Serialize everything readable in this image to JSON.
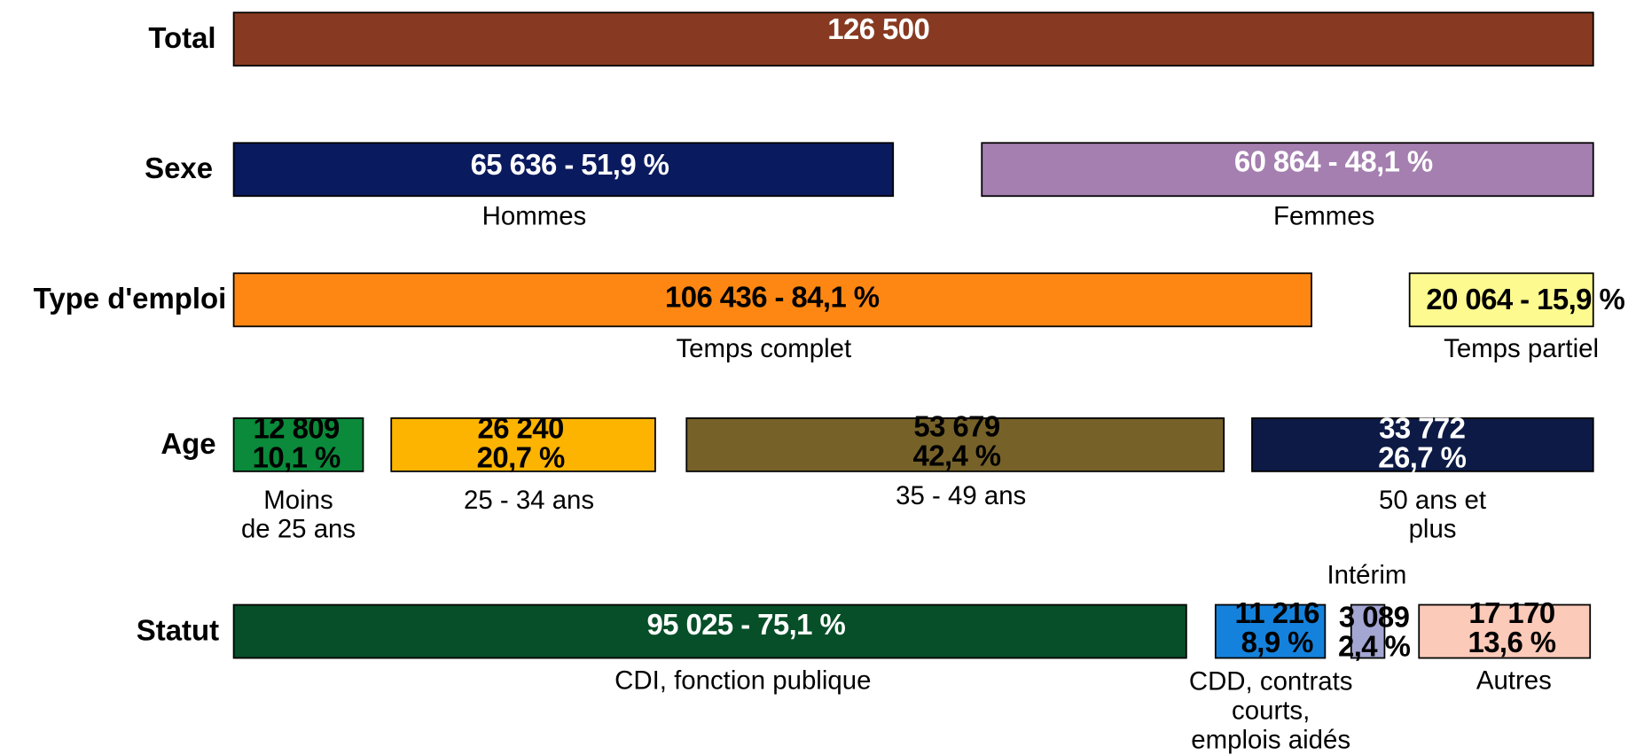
{
  "rows": [
    {
      "label": "Total",
      "segments": [
        {
          "value_lines": [
            "126 500"
          ],
          "color": "#873a21",
          "text_color": "#ffffff"
        }
      ]
    },
    {
      "label": "Sexe",
      "segments": [
        {
          "value_lines": [
            "65 636 - 51,9 %"
          ],
          "label_lines": [
            "Hommes"
          ],
          "color": "#0a1a5e",
          "text_color": "#ffffff"
        },
        {
          "value_lines": [
            "60 864 - 48,1 %"
          ],
          "label_lines": [
            "Femmes"
          ],
          "color": "#a57fb0",
          "text_color": "#ffffff"
        }
      ]
    },
    {
      "label": "Type d'emploi",
      "segments": [
        {
          "value_lines": [
            "106 436 - 84,1 %"
          ],
          "label_lines": [
            "Temps complet"
          ],
          "color": "#fd8712",
          "text_color": "#000000"
        },
        {
          "value_lines": [
            "20 064 - 15,9 %"
          ],
          "label_lines": [
            "Temps partiel"
          ],
          "color": "#fdfa8f",
          "text_color": "#000000"
        }
      ]
    },
    {
      "label": "Age",
      "segments": [
        {
          "value_lines": [
            "12 809",
            "10,1 %"
          ],
          "label_lines": [
            "Moins",
            "de 25 ans"
          ],
          "color": "#0a8a3a",
          "text_color": "#000000"
        },
        {
          "value_lines": [
            "26 240",
            "20,7 %"
          ],
          "label_lines": [
            "25 - 34 ans"
          ],
          "color": "#fdb400",
          "text_color": "#000000"
        },
        {
          "value_lines": [
            "53 679",
            "42,4 %"
          ],
          "label_lines": [
            "35 - 49 ans"
          ],
          "color": "#766229",
          "text_color": "#000000"
        },
        {
          "value_lines": [
            "33 772",
            "26,7 %"
          ],
          "label_lines": [
            "50 ans et",
            "plus"
          ],
          "color": "#0c1a45",
          "text_color": "#ffffff"
        }
      ]
    },
    {
      "label": "Statut",
      "segments": [
        {
          "value_lines": [
            "95 025 - 75,1 %"
          ],
          "label_lines": [
            "CDI, fonction publique"
          ],
          "color": "#064f28",
          "text_color": "#ffffff"
        },
        {
          "value_lines": [
            "11 216",
            "8,9 %"
          ],
          "label_lines": [
            "CDD, contrats",
            "courts,",
            "emplois aidés"
          ],
          "color": "#1482dc",
          "text_color": "#000000"
        },
        {
          "value_lines": [
            "3 089",
            "2,4 %"
          ],
          "label_lines": [
            "Intérim"
          ],
          "color": "#a4a6d2",
          "text_color": "#000000"
        },
        {
          "value_lines": [
            "17 170",
            "13,6 %"
          ],
          "label_lines": [
            "Autres"
          ],
          "color": "#fccab9",
          "text_color": "#000000"
        }
      ]
    }
  ]
}
